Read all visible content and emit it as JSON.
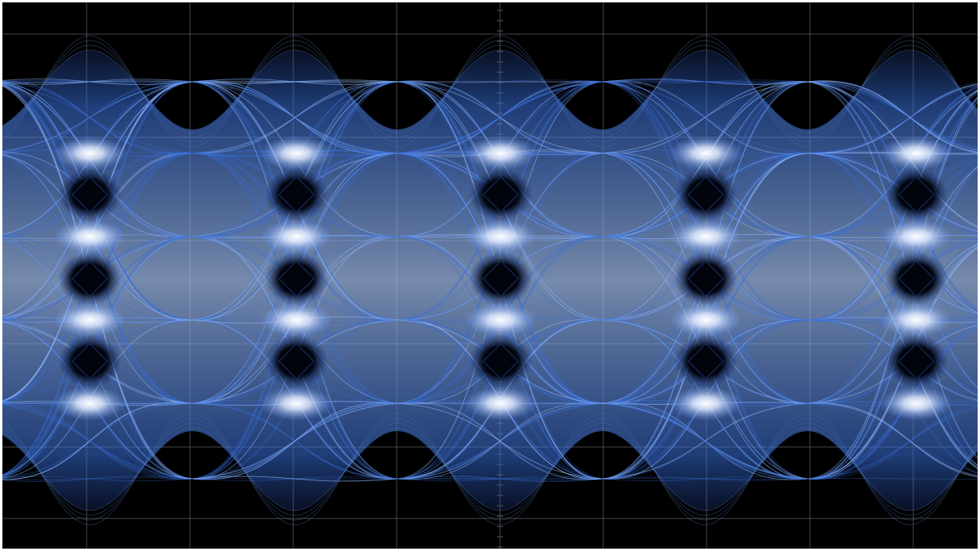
{
  "display": {
    "background_color": "#000000",
    "border_color": "#ffffff",
    "grid_color": "#5a5a5a",
    "trace_color": "#3a6fd8",
    "trace_highlight_color": "#9cc1ff",
    "crossing_glow_color": "#ffffff",
    "eye_color": "#02040c"
  },
  "grid": {
    "vertical_divisions": 10,
    "horizontal_divisions": 5,
    "center_axis_ticks": true
  },
  "signal": {
    "type": "PAM4 eye diagram",
    "unit_intervals_visible": 4.8,
    "levels": 4,
    "eyes_per_crossing": 3,
    "crossing_columns": 5
  }
}
